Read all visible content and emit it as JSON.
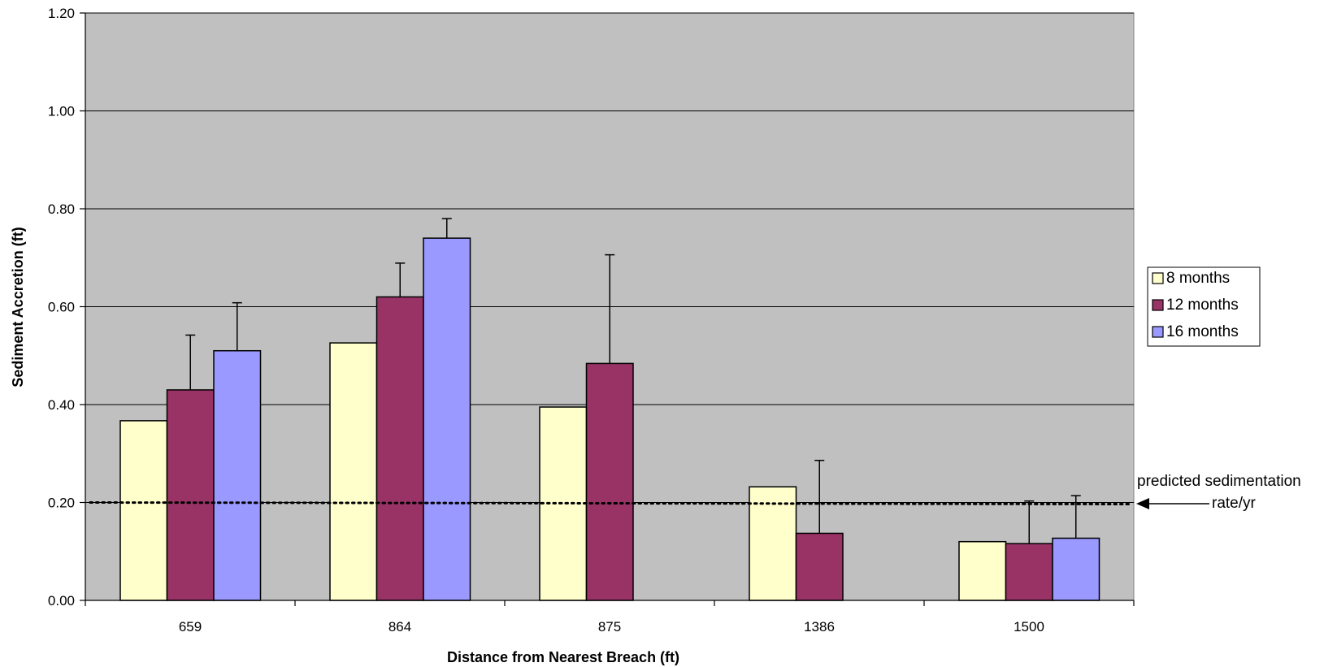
{
  "colors": {
    "plot_background": "#c0c0c0",
    "series": [
      "#ffffcc",
      "#993366",
      "#9999ff"
    ],
    "bar_stroke": "#000000",
    "gridline": "#000000"
  },
  "chart_data": {
    "type": "bar",
    "title": "",
    "xlabel": "Distance from Nearest Breach (ft)",
    "ylabel": "Sediment Accretion (ft)",
    "ylim": [
      0,
      1.2
    ],
    "yticks": [
      "0.00",
      "0.20",
      "0.40",
      "0.60",
      "0.80",
      "1.00",
      "1.20"
    ],
    "grid": true,
    "legend_position": "right",
    "categories": [
      "659",
      "864",
      "875",
      "1386",
      "1500"
    ],
    "series": [
      {
        "name": "8 months",
        "values": [
          0.367,
          0.526,
          0.395,
          0.232,
          0.12
        ],
        "error_upper": [
          null,
          null,
          null,
          null,
          null
        ]
      },
      {
        "name": "12 months",
        "values": [
          0.43,
          0.62,
          0.484,
          0.137,
          0.116
        ],
        "error_upper": [
          0.542,
          0.689,
          0.706,
          0.286,
          0.203
        ]
      },
      {
        "name": "16 months",
        "values": [
          0.51,
          0.74,
          null,
          null,
          0.127
        ],
        "error_upper": [
          0.608,
          0.78,
          null,
          null,
          0.214
        ]
      }
    ],
    "reference_line": {
      "value": 0.2,
      "style": "dotted",
      "label_line1": "predicted  sedimentation",
      "label_line2": "rate/yr"
    }
  }
}
